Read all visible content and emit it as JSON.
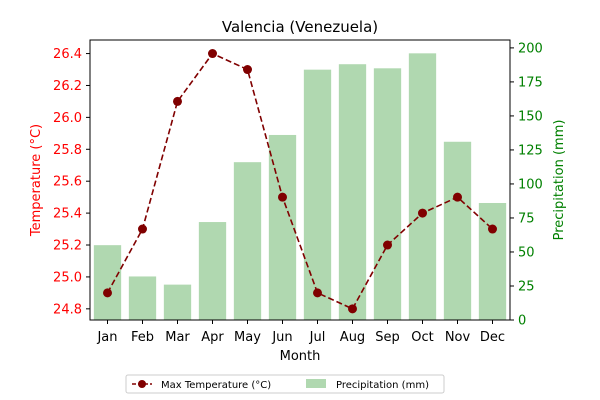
{
  "chart_data": {
    "type": "bar+line",
    "title": "Valencia (Venezuela)",
    "xlabel": "Month",
    "categories": [
      "Jan",
      "Feb",
      "Mar",
      "Apr",
      "May",
      "Jun",
      "Jul",
      "Aug",
      "Sep",
      "Oct",
      "Nov",
      "Dec"
    ],
    "line_series": {
      "name": "Max Temperature (°C)",
      "axis": "left",
      "values": [
        24.9,
        25.3,
        26.1,
        26.4,
        26.3,
        25.5,
        24.9,
        24.8,
        25.2,
        25.4,
        25.5,
        25.3
      ],
      "color": "#800000",
      "style": "dashed",
      "marker": "circle"
    },
    "bar_series": {
      "name": "Precipitation (mm)",
      "axis": "right",
      "values": [
        55,
        32,
        26,
        72,
        116,
        136,
        184,
        188,
        185,
        196,
        131,
        86
      ],
      "color": "#b0d8b0"
    },
    "left_axis": {
      "label": "Temperature (°C)",
      "color": "#ff0000",
      "ylim": [
        24.73,
        26.485
      ],
      "ticks": [
        "24.8",
        "25.0",
        "25.2",
        "25.4",
        "25.6",
        "25.8",
        "26.0",
        "26.2",
        "26.4"
      ],
      "tick_values": [
        24.8,
        25.0,
        25.2,
        25.4,
        25.6,
        25.8,
        26.0,
        26.2,
        26.4
      ]
    },
    "right_axis": {
      "label": "Precipitation (mm)",
      "color": "#008000",
      "ylim": [
        0,
        205.8
      ],
      "ticks": [
        "0",
        "25",
        "50",
        "75",
        "100",
        "125",
        "150",
        "175",
        "200"
      ],
      "tick_values": [
        0,
        25,
        50,
        75,
        100,
        125,
        150,
        175,
        200
      ]
    },
    "legend": {
      "placement": "bottom-center",
      "entries": [
        "Max Temperature (°C)",
        "Precipitation (mm)"
      ]
    },
    "grid": false
  }
}
